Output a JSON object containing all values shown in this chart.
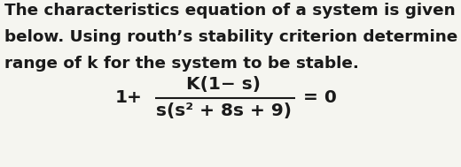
{
  "line1": "The characteristics equation of a system is given",
  "line2": "below. Using routh’s stability criterion determine",
  "line3": "range of k for the system to be stable.",
  "text_color": "#1a1a1a",
  "bg_color": "#f5f5f0",
  "font_size_body": 13.2,
  "font_size_math": 14.5,
  "numerator": "K(1− s)",
  "denominator": "s(s² + 8s + 9)",
  "prefix": "1+",
  "suffix": "= 0"
}
